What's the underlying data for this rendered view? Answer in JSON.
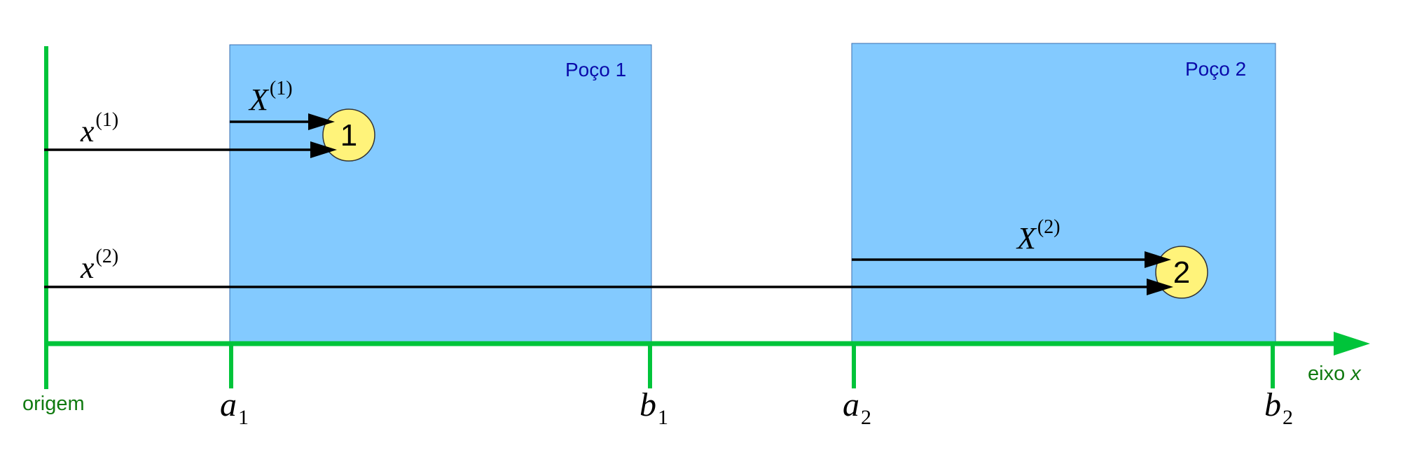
{
  "colors": {
    "axis": "#00c43a",
    "well_fill": "#83caff",
    "well_border": "#3a6fb0",
    "well_label": "#0a0aaa",
    "particle_fill": "#fff37a",
    "arrow": "#000000",
    "axis_label": "#107a10"
  },
  "axis": {
    "label_prefix": "eixo ",
    "label_var": "x",
    "origin_label": "origem"
  },
  "ticks": [
    {
      "id": "a1",
      "base": "a",
      "sub": "1"
    },
    {
      "id": "b1",
      "base": "b",
      "sub": "1"
    },
    {
      "id": "a2",
      "base": "a",
      "sub": "2"
    },
    {
      "id": "b2",
      "base": "b",
      "sub": "2"
    }
  ],
  "wells": [
    {
      "id": "well-1",
      "label": "Poço 1"
    },
    {
      "id": "well-2",
      "label": "Poço 2"
    }
  ],
  "particles": [
    {
      "id": "particle-1",
      "label": "1"
    },
    {
      "id": "particle-2",
      "label": "2"
    }
  ],
  "vectors": [
    {
      "id": "x1",
      "base": "x",
      "sup": "(1)"
    },
    {
      "id": "X1",
      "base": "X",
      "sup": "(1)"
    },
    {
      "id": "x2",
      "base": "x",
      "sup": "(2)"
    },
    {
      "id": "X2",
      "base": "X",
      "sup": "(2)"
    }
  ]
}
